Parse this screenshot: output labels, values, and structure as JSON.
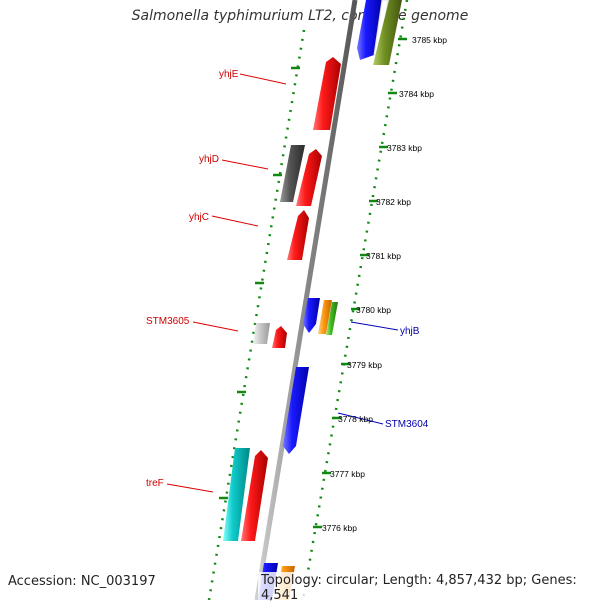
{
  "title": "Salmonella typhimurium LT2, complete genome",
  "accession": "Accession: NC_003197",
  "topology": "Topology: circular; Length: 4,857,432 bp; Genes: 4,541",
  "colors": {
    "red": "#ee1111",
    "blue": "#1111ee",
    "cyan": "#11cccc",
    "dark_gray": "#555555",
    "light_gray": "#c8c8c8",
    "orange": "#ff9911",
    "green": "#44bb22",
    "olive": "#6f8f22",
    "backbone": "#8a8a8a",
    "ruler": "#118811",
    "label_red": "#cc0000",
    "label_blue": "#0000aa"
  },
  "scale_labels": [
    "3785 kbp",
    "3784 kbp",
    "3783 kbp",
    "3782 kbp",
    "3781 kbp",
    "3780 kbp",
    "3779 kbp",
    "3778 kbp",
    "3777 kbp",
    "3776 kbp"
  ],
  "gene_labels": {
    "yhjE": "yhjE",
    "yhjD": "yhjD",
    "yhjC": "yhjC",
    "STM3605": "STM3605",
    "treF": "treF",
    "yhjB": "yhjB",
    "STM3604": "STM3604"
  }
}
